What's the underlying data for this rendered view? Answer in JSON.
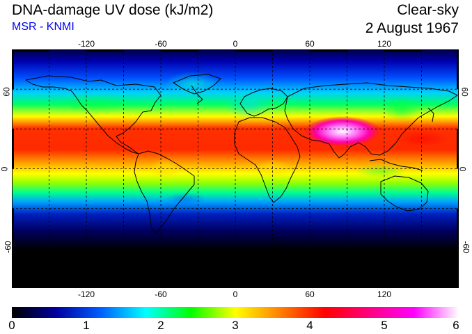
{
  "header": {
    "title": "DNA-damage UV dose (kJ/m2)",
    "subtitle": "MSR - KNMI",
    "condition": "Clear-sky",
    "date": "2 August 1967"
  },
  "map": {
    "projection": "equirectangular",
    "lon_range": [
      -180,
      180
    ],
    "lat_range": [
      -90,
      90
    ],
    "graticule_step_deg": 30,
    "lon_tick_labels": [
      "-120",
      "-60",
      "0",
      "60",
      "120"
    ],
    "lat_tick_labels_left": [
      "60",
      "0",
      "-60"
    ],
    "lat_tick_labels_right": [
      "60",
      "0",
      "-60"
    ],
    "hotspot_region": "Tibetan Plateau / Himalaya"
  },
  "colorbar": {
    "min": 0,
    "max": 6,
    "labels": [
      "0",
      "1",
      "2",
      "3",
      "4",
      "5",
      "6"
    ],
    "stops": [
      "#000000",
      "#0000a0",
      "#0060ff",
      "#00ffff",
      "#00ff00",
      "#ffff00",
      "#ff8000",
      "#ff0000",
      "#ff0080",
      "#ff00ff",
      "#ffffff"
    ]
  }
}
